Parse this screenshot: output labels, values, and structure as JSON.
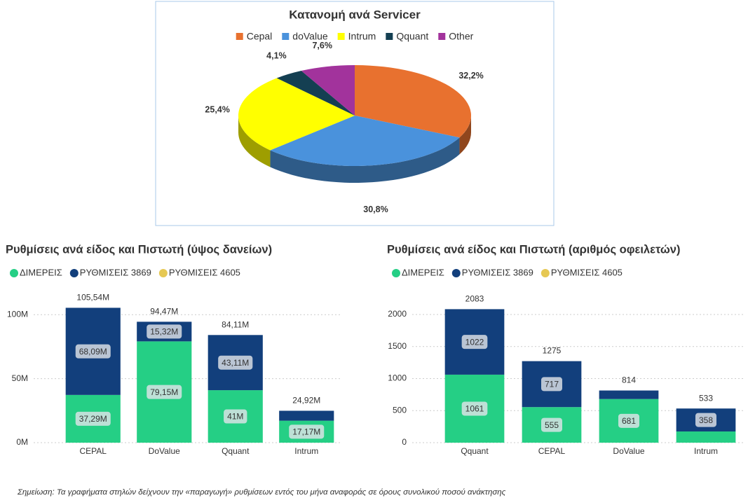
{
  "chart_data": [
    {
      "type": "pie",
      "title": "Κατανομή ανά Servicer",
      "categories": [
        "Cepal",
        "doValue",
        "Intrum",
        "Qquant",
        "Other"
      ],
      "values": [
        32.2,
        30.8,
        25.4,
        4.1,
        7.6
      ],
      "value_labels": [
        "32,2%",
        "30,8%",
        "25,4%",
        "4,1%",
        "7,6%"
      ],
      "colors": [
        "#e8712f",
        "#4a92dc",
        "#ffff00",
        "#143f52",
        "#a2339c"
      ]
    },
    {
      "type": "bar",
      "stacked": true,
      "title": "Ρυθμίσεις ανά είδος και Πιστωτή (ύψος δανείων)",
      "categories": [
        "CEPAL",
        "DoValue",
        "Qquant",
        "Intrum"
      ],
      "series": [
        {
          "name": "ΔΙΜΕΡΕΙΣ",
          "color": "#25cf85",
          "values": [
            37.29,
            79.15,
            41,
            17.17
          ],
          "value_labels": [
            "37,29M",
            "79,15M",
            "41M",
            "17,17M"
          ]
        },
        {
          "name": "ΡΥΘΜΙΣΕΙΣ 3869",
          "color": "#123f7c",
          "values": [
            68.09,
            15.32,
            43.11,
            7.75
          ],
          "value_labels": [
            "68,09M",
            "15,32M",
            "43,11M",
            null
          ]
        },
        {
          "name": "ΡΥΘΜΙΣΕΙΣ 4605",
          "color": "#e6c853",
          "values": [
            null,
            null,
            null,
            null
          ]
        }
      ],
      "totals": [
        105.54,
        94.47,
        84.11,
        24.92
      ],
      "total_labels": [
        "105,54M",
        "94,47M",
        "84,11M",
        "24,92M"
      ],
      "ylim": [
        0,
        110
      ],
      "yticks": [
        {
          "value": 0,
          "label": "0M"
        },
        {
          "value": 50,
          "label": "50M"
        },
        {
          "value": 100,
          "label": "100M"
        }
      ],
      "grid": true
    },
    {
      "type": "bar",
      "stacked": true,
      "title": "Ρυθμίσεις ανά είδος και Πιστωτή (αριθμός οφειλετών)",
      "categories": [
        "Qquant",
        "CEPAL",
        "DoValue",
        "Intrum"
      ],
      "series": [
        {
          "name": "ΔΙΜΕΡΕΙΣ",
          "color": "#25cf85",
          "values": [
            1061,
            555,
            681,
            175
          ],
          "value_labels": [
            "1061",
            "555",
            "681",
            null
          ]
        },
        {
          "name": "ΡΥΘΜΙΣΕΙΣ 3869",
          "color": "#123f7c",
          "values": [
            1022,
            717,
            133,
            358
          ],
          "value_labels": [
            "1022",
            "717",
            null,
            "358"
          ]
        },
        {
          "name": "ΡΥΘΜΙΣΕΙΣ 4605",
          "color": "#e6c853",
          "values": [
            null,
            null,
            null,
            null
          ]
        }
      ],
      "totals": [
        2083,
        1275,
        814,
        533
      ],
      "ylim": [
        0,
        2200
      ],
      "yticks": [
        0,
        500,
        1000,
        1500,
        2000
      ],
      "grid": true
    }
  ],
  "note": "Σημείωση: Τα γραφήματα στηλών δείχνουν την «παραγωγή» ρυθμίσεων εντός του μήνα αναφοράς σε όρους συνολικού ποσού ανάκτησης"
}
